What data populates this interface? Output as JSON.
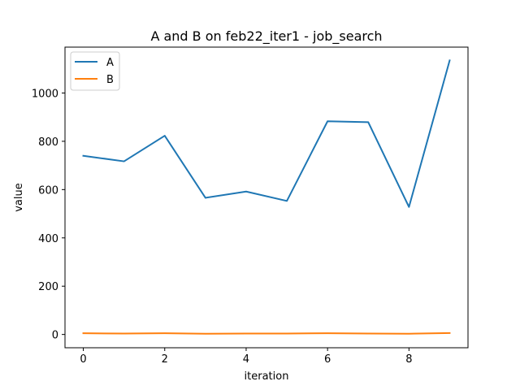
{
  "chart_data": {
    "type": "line",
    "title": "A and B on feb22_iter1 - job_search",
    "xlabel": "iteration",
    "ylabel": "value",
    "x": [
      0,
      1,
      2,
      3,
      4,
      5,
      6,
      7,
      8,
      9
    ],
    "xlim": [
      -0.45,
      9.45
    ],
    "ylim": [
      -55,
      1190
    ],
    "xticks": [
      0,
      2,
      4,
      6,
      8
    ],
    "yticks": [
      0,
      200,
      400,
      600,
      800,
      1000
    ],
    "grid": false,
    "legend_position": "top-left",
    "series": [
      {
        "name": "A",
        "color": "#1f77b4",
        "values": [
          740,
          717,
          823,
          566,
          592,
          553,
          883,
          879,
          528,
          1135
        ]
      },
      {
        "name": "B",
        "color": "#ff7f0e",
        "values": [
          5,
          4,
          5,
          3,
          4,
          4,
          5,
          4,
          3,
          6
        ]
      }
    ]
  }
}
